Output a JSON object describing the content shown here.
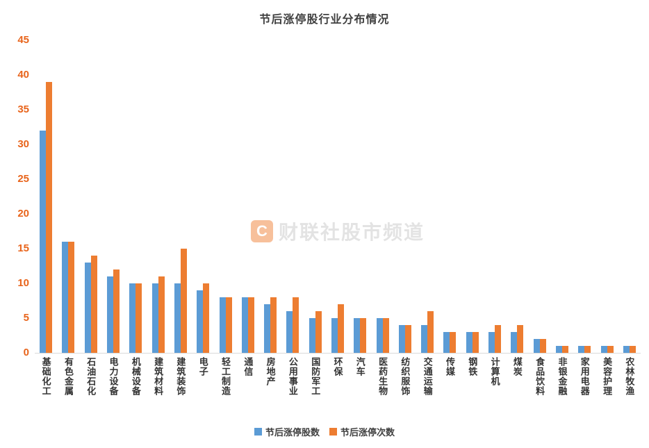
{
  "title": "节后涨停股行业分布情况",
  "watermark": {
    "logo": "C",
    "text": "财联社股市频道"
  },
  "legend": [
    {
      "label": "节后涨停股数",
      "color": "#5B9BD5"
    },
    {
      "label": "节后涨停次数",
      "color": "#ED7D31"
    }
  ],
  "colors": {
    "blue_series": "#5B9BD5",
    "orange_series": "#ED7D31",
    "y_tick_label": "#E8641B",
    "axis_line": "#d9d9d9"
  },
  "chart_data": {
    "type": "bar",
    "title": "节后涨停股行业分布情况",
    "xlabel": "",
    "ylabel": "",
    "ylim": [
      0,
      45
    ],
    "yticks": [
      45,
      40,
      35,
      30,
      25,
      20,
      15,
      10,
      5,
      0
    ],
    "grid": false,
    "legend_position": "bottom",
    "categories": [
      "基础化工",
      "有色金属",
      "石油石化",
      "电力设备",
      "机械设备",
      "建筑材料",
      "建筑装饰",
      "电子",
      "轻工制造",
      "通信",
      "房地产",
      "公用事业",
      "国防军工",
      "环保",
      "汽车",
      "医药生物",
      "纺织服饰",
      "交通运输",
      "传媒",
      "钢铁",
      "计算机",
      "煤炭",
      "食品饮料",
      "非银金融",
      "家用电器",
      "美容护理",
      "农林牧渔"
    ],
    "series": [
      {
        "name": "节后涨停股数",
        "color": "#5B9BD5",
        "values": [
          32,
          16,
          13,
          11,
          10,
          10,
          10,
          9,
          8,
          8,
          7,
          6,
          5,
          5,
          5,
          5,
          4,
          4,
          3,
          3,
          3,
          3,
          2,
          1,
          1,
          1,
          1
        ]
      },
      {
        "name": "节后涨停次数",
        "color": "#ED7D31",
        "values": [
          39,
          16,
          14,
          12,
          10,
          11,
          15,
          10,
          8,
          8,
          8,
          8,
          6,
          7,
          5,
          5,
          4,
          6,
          3,
          3,
          4,
          4,
          2,
          1,
          1,
          1,
          1
        ]
      }
    ]
  }
}
